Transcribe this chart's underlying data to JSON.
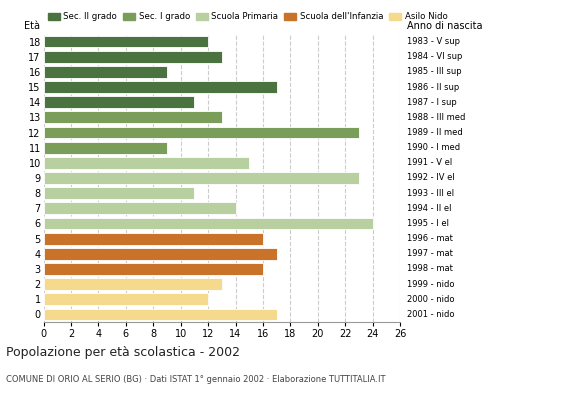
{
  "ages": [
    18,
    17,
    16,
    15,
    14,
    13,
    12,
    11,
    10,
    9,
    8,
    7,
    6,
    5,
    4,
    3,
    2,
    1,
    0
  ],
  "values": [
    12,
    13,
    9,
    17,
    11,
    13,
    23,
    9,
    15,
    23,
    11,
    14,
    24,
    16,
    17,
    16,
    13,
    12,
    17
  ],
  "anno_nascita": [
    "1983 - V sup",
    "1984 - VI sup",
    "1985 - III sup",
    "1986 - II sup",
    "1987 - I sup",
    "1988 - III med",
    "1989 - II med",
    "1990 - I med",
    "1991 - V el",
    "1992 - IV el",
    "1993 - III el",
    "1994 - II el",
    "1995 - I el",
    "1996 - mat",
    "1997 - mat",
    "1998 - mat",
    "1999 - nido",
    "2000 - nido",
    "2001 - nido"
  ],
  "colors": [
    "#4a7340",
    "#4a7340",
    "#4a7340",
    "#4a7340",
    "#4a7340",
    "#7a9e5a",
    "#7a9e5a",
    "#7a9e5a",
    "#b8cfa0",
    "#b8cfa0",
    "#b8cfa0",
    "#b8cfa0",
    "#b8cfa0",
    "#c8722a",
    "#c8722a",
    "#c8722a",
    "#f5d98c",
    "#f5d98c",
    "#f5d98c"
  ],
  "legend_labels": [
    "Sec. II grado",
    "Sec. I grado",
    "Scuola Primaria",
    "Scuola dell'Infanzia",
    "Asilo Nido"
  ],
  "legend_colors": [
    "#4a7340",
    "#7a9e5a",
    "#b8cfa0",
    "#c8722a",
    "#f5d98c"
  ],
  "title": "Popolazione per età scolastica - 2002",
  "subtitle": "COMUNE DI ORIO AL SERIO (BG) · Dati ISTAT 1° gennaio 2002 · Elaborazione TUTTITALIA.IT",
  "xlabel_eta": "Età",
  "xlabel_anno": "Anno di nascita",
  "xlim": [
    0,
    26
  ],
  "xticks": [
    0,
    2,
    4,
    6,
    8,
    10,
    12,
    14,
    16,
    18,
    20,
    22,
    24,
    26
  ],
  "bar_height": 0.78,
  "grid_color": "#cccccc",
  "bg_color": "#ffffff"
}
